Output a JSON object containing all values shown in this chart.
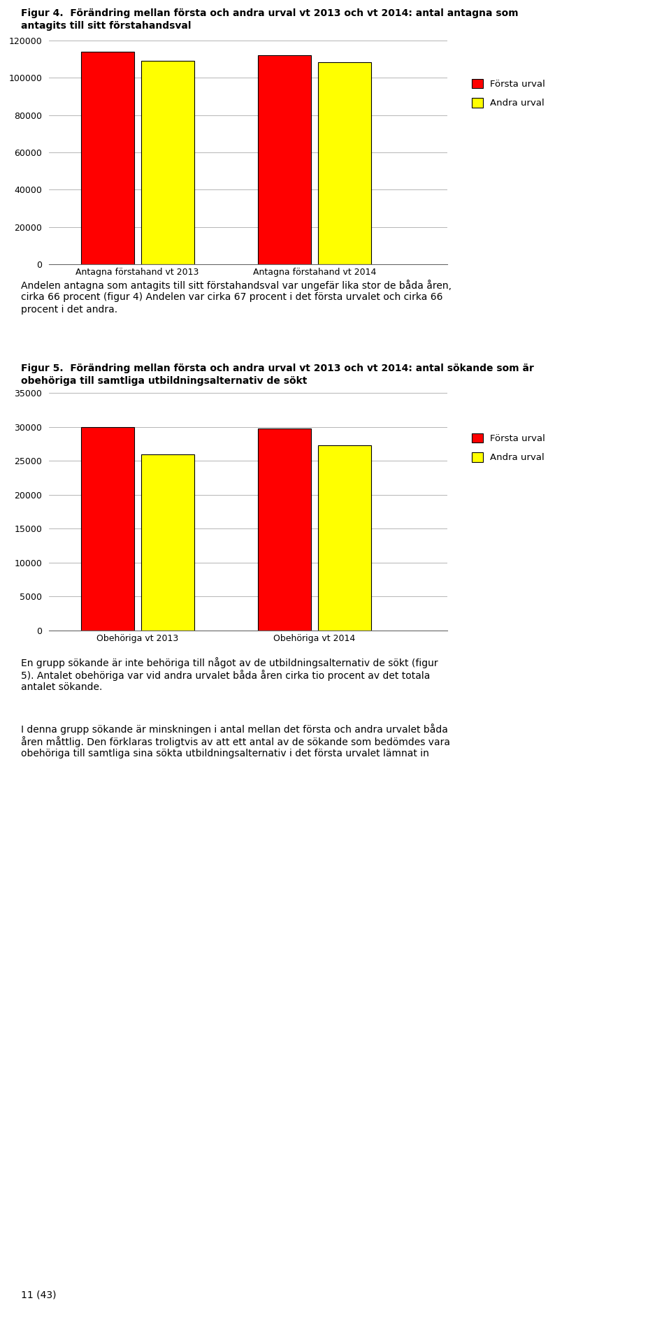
{
  "fig4_title_line1": "Figur 4.  Förändring mellan första och andra urval vt 2013 och vt 2014: antal antagna som",
  "fig4_title_line2": "antagits till sitt förstahandsval",
  "fig4_categories": [
    "Antagna förstahand vt 2013",
    "Antagna förstahand vt 2014"
  ],
  "fig4_forsta": [
    114000,
    112000
  ],
  "fig4_andra": [
    109000,
    108500
  ],
  "fig4_ylim": [
    0,
    120000
  ],
  "fig4_yticks": [
    0,
    20000,
    40000,
    60000,
    80000,
    100000,
    120000
  ],
  "fig5_title_line1": "Figur 5.  Förändring mellan första och andra urval vt 2013 och vt 2014: antal sökande som är",
  "fig5_title_line2": "obehöriga till samtliga utbildningsalternativ de sökt",
  "fig5_categories": [
    "Obehöriga vt 2013",
    "Obehöriga vt 2014"
  ],
  "fig5_forsta": [
    30000,
    29800
  ],
  "fig5_andra": [
    25900,
    27300
  ],
  "fig5_ylim": [
    0,
    35000
  ],
  "fig5_yticks": [
    0,
    5000,
    10000,
    15000,
    20000,
    25000,
    30000,
    35000
  ],
  "color_forsta": "#FF0000",
  "color_andra": "#FFFF00",
  "color_border": "#000000",
  "legend_forsta": "Första urval",
  "legend_andra": "Andra urval",
  "para1_line1": "Andelen antagna som antagits till sitt förstahandsval var ungefär lika stor de båda åren,",
  "para1_line2": "cirka 66 procent (figur 4) Andelen var cirka 67 procent i det första urvalet och cirka 66",
  "para1_line3": "procent i det andra.",
  "para2_line1": "En grupp sökande är inte behöriga till något av de utbildningsalternativ de sökt (figur",
  "para2_line2": "5). Antalet obehöriga var vid andra urvalet båda åren cirka tio procent av det totala",
  "para2_line3": "antalet sökande.",
  "para3_line1": "I denna grupp sökande är minskningen i antal mellan det första och andra urvalet båda",
  "para3_line2": "åren måttlig. Den förklaras troligtvis av att ett antal av de sökande som bedömdes vara",
  "para3_line3": "obehöriga till samtliga sina sökta utbildningsalternativ i det första urvalet lämnat in",
  "footer": "11 (43)"
}
